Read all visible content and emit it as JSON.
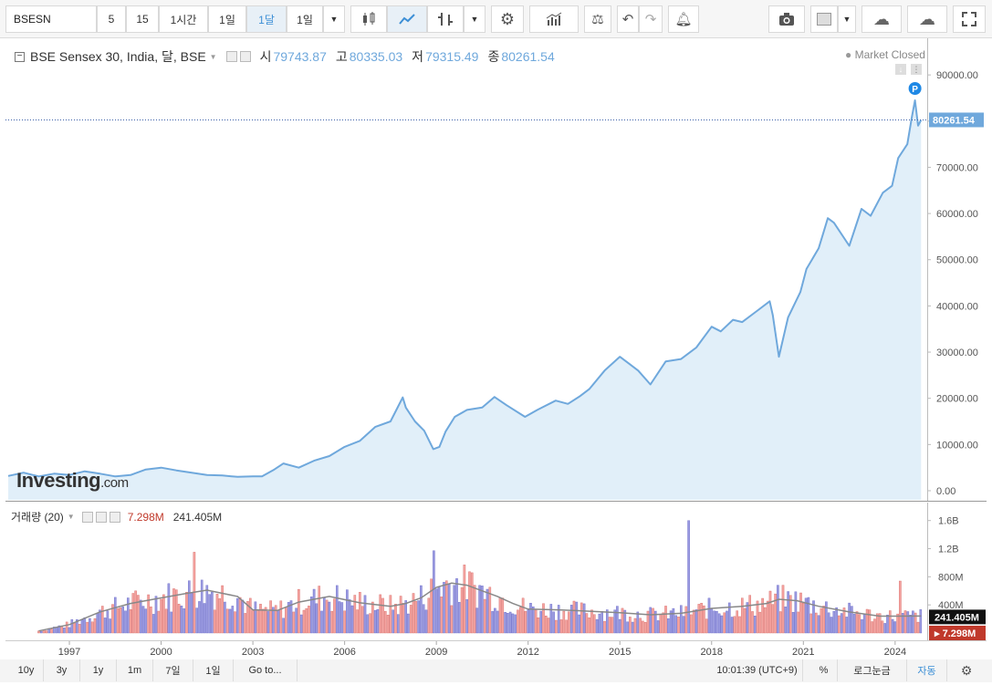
{
  "toolbar": {
    "symbol": "BSESN",
    "intervals": [
      "5",
      "15",
      "1시간",
      "1일",
      "1달",
      "1일"
    ],
    "active_interval": "1달"
  },
  "legend": {
    "name": "BSE Sensex 30, India, 달, BSE",
    "open_label": "시",
    "open": "79743.87",
    "high_label": "고",
    "high": "80335.03",
    "low_label": "저",
    "low": "79315.49",
    "close_label": "종",
    "close": "80261.54",
    "market_status": "Market Closed"
  },
  "vol_legend": {
    "name": "거래량 (20)",
    "value": "7.298M",
    "ma_value": "241.405M"
  },
  "branding": {
    "logo_main": "Investing",
    "logo_suffix": ".com"
  },
  "price_badge": "80261.54",
  "vol_badge_ma": "241.405M",
  "vol_badge": "7.298M",
  "marker_label": "P",
  "bottom": {
    "ranges": [
      "10y",
      "3y",
      "1y",
      "1m",
      "7일",
      "1일"
    ],
    "goto": "Go to...",
    "time": "10:01:39 (UTC+9)",
    "percent": "%",
    "log": "로그눈금",
    "auto": "자동"
  },
  "colors": {
    "line": "#6fa8dc",
    "area": "#e1eff9",
    "vol_up": "#f4a3a0",
    "vol_down": "#9a9ae0",
    "vol_ma": "#888888",
    "vol_badge": "#c0392b"
  },
  "chart_data": [
    {
      "type": "area",
      "title": "BSE Sensex 30, India, 달, BSE",
      "x_ticks": [
        "1997",
        "2000",
        "2003",
        "2006",
        "2009",
        "2012",
        "2015",
        "2018",
        "2021",
        "2024"
      ],
      "y_ticks": [
        "0.00",
        "10000.00",
        "20000.00",
        "30000.00",
        "40000.00",
        "50000.00",
        "60000.00",
        "70000.00",
        "80000.00",
        "90000.00"
      ],
      "ylim": [
        0,
        92000
      ],
      "xlim": [
        1995.0,
        2024.9
      ],
      "last_value": 80261.54,
      "series": [
        {
          "x": [
            1995.0,
            1995.5,
            1996.0,
            1996.5,
            1997.0,
            1997.5,
            1998.0,
            1998.5,
            1999.0,
            1999.5,
            2000.0,
            2000.5,
            2001.0,
            2001.5,
            2002.0,
            2002.5,
            2003.0,
            2003.3,
            2003.7,
            2004.0,
            2004.5,
            2005.0,
            2005.5,
            2006.0,
            2006.5,
            2007.0,
            2007.5,
            2007.9,
            2008.0,
            2008.3,
            2008.6,
            2008.9,
            2009.1,
            2009.3,
            2009.6,
            2010.0,
            2010.5,
            2010.9,
            2011.3,
            2011.9,
            2012.3,
            2012.9,
            2013.3,
            2013.7,
            2014.0,
            2014.5,
            2015.0,
            2015.3,
            2015.6,
            2016.0,
            2016.5,
            2017.0,
            2017.5,
            2018.0,
            2018.3,
            2018.7,
            2019.0,
            2019.5,
            2019.9,
            2020.0,
            2020.2,
            2020.5,
            2020.9,
            2021.1,
            2021.5,
            2021.8,
            2022.0,
            2022.5,
            2022.9,
            2023.2,
            2023.6,
            2023.9,
            2024.1,
            2024.4,
            2024.55,
            2024.65,
            2024.75,
            2024.85
          ],
          "y": [
            3200,
            3900,
            3100,
            3700,
            3400,
            4200,
            3700,
            3100,
            3400,
            4600,
            5000,
            4400,
            3900,
            3400,
            3300,
            3000,
            3100,
            3100,
            4600,
            5900,
            5000,
            6500,
            7500,
            9500,
            10800,
            13800,
            15000,
            20200,
            18000,
            15000,
            13000,
            9000,
            9500,
            12800,
            16000,
            17500,
            18000,
            20300,
            18500,
            16000,
            17500,
            19500,
            18800,
            20500,
            22000,
            26000,
            29000,
            27500,
            26000,
            23000,
            28000,
            28500,
            31000,
            35500,
            34500,
            37000,
            36500,
            39000,
            41000,
            38000,
            29000,
            37500,
            43000,
            48000,
            52500,
            59000,
            58000,
            53000,
            61000,
            59500,
            64500,
            66000,
            72000,
            75000,
            81000,
            84500,
            79000,
            80261.54
          ]
        }
      ]
    },
    {
      "type": "bar",
      "title": "거래량 (20)",
      "y_ticks": [
        "400M",
        "800M",
        "1.2B",
        "1.6B"
      ],
      "ylim": [
        0,
        1700
      ],
      "x_ticks": [
        "1997",
        "2000",
        "2003",
        "2006",
        "2009",
        "2012",
        "2015",
        "2018",
        "2021",
        "2024"
      ],
      "xlim": [
        1995.0,
        2024.9
      ],
      "notable_bars": [
        {
          "x": 2001.1,
          "value": 1150
        },
        {
          "x": 2008.9,
          "value": 1170
        },
        {
          "x": 2017.25,
          "value": 1600
        },
        {
          "x": 2024.2,
          "value": 740
        }
      ],
      "ma_series": {
        "x": [
          1996.0,
          1997.0,
          1998.0,
          1999.0,
          2000.0,
          2000.8,
          2001.5,
          2002.5,
          2003.0,
          2003.8,
          2004.5,
          2005.5,
          2006.5,
          2007.5,
          2008.0,
          2008.5,
          2009.0,
          2009.5,
          2010.0,
          2010.5,
          2011.0,
          2011.5,
          2012.0,
          2013.0,
          2014.0,
          2015.0,
          2016.0,
          2017.0,
          2018.0,
          2019.0,
          2019.8,
          2020.2,
          2020.8,
          2021.5,
          2022.5,
          2023.5,
          2024.0,
          2024.85
        ],
        "y": [
          30,
          120,
          300,
          420,
          500,
          560,
          610,
          520,
          330,
          320,
          440,
          520,
          430,
          380,
          420,
          500,
          650,
          710,
          680,
          600,
          520,
          420,
          340,
          330,
          310,
          290,
          260,
          280,
          350,
          380,
          420,
          480,
          460,
          380,
          300,
          240,
          240,
          241.405
        ]
      }
    }
  ]
}
